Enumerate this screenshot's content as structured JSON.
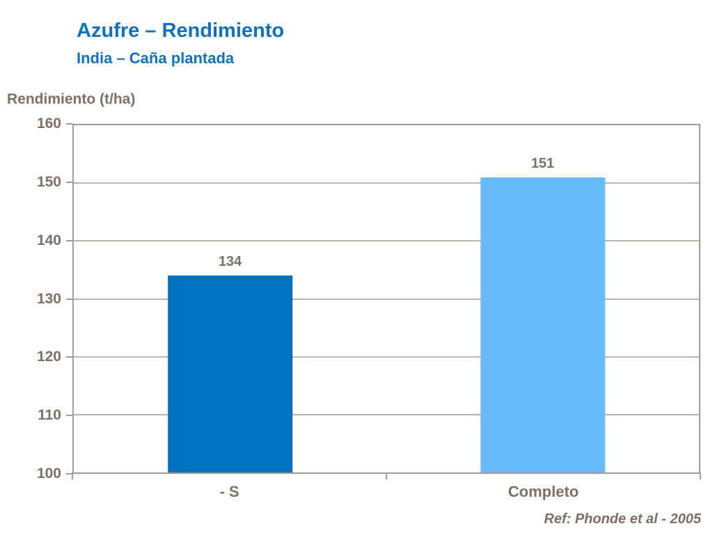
{
  "header": {
    "title": "Azufre – Rendimiento",
    "subtitle": "India – Caña plantada"
  },
  "axis_title": "Rendimiento (t/ha)",
  "footer": {
    "reference": "Ref: Phonde et al - 2005"
  },
  "colors": {
    "title_blue": "#1171BD",
    "text_brown": "#7E7062",
    "axis_border": "#A29C94",
    "gridline": "#B8B4AC",
    "bar_minus_s": "#0071C0",
    "bar_completo": "#68BCFB"
  },
  "chart_data": {
    "type": "bar",
    "title": "Azufre – Rendimiento",
    "subtitle": "India – Caña plantada",
    "categories": [
      "- S",
      "Completo"
    ],
    "values": [
      134,
      151
    ],
    "data_labels": [
      "134",
      "151"
    ],
    "bar_colors": [
      "#0071C0",
      "#68BCFB"
    ],
    "xlabel": "",
    "ylabel": "Rendimiento (t/ha)",
    "ylim": [
      100,
      160
    ],
    "yticks": [
      100,
      110,
      120,
      130,
      140,
      150,
      160
    ],
    "grid": true,
    "legend": false,
    "annotation": "Ref: Phonde et al - 2005"
  }
}
